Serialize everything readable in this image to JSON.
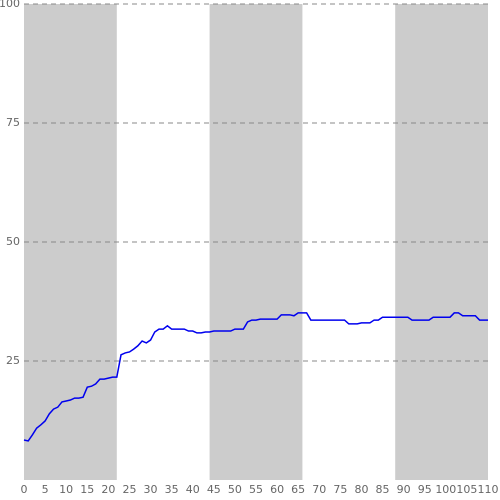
{
  "chart_data": {
    "type": "line",
    "x": [
      0,
      1,
      2,
      3,
      4,
      5,
      6,
      7,
      8,
      9,
      10,
      11,
      12,
      13,
      14,
      15,
      16,
      17,
      18,
      19,
      20,
      21,
      22,
      23,
      24,
      25,
      26,
      27,
      28,
      29,
      30,
      31,
      32,
      33,
      34,
      35,
      36,
      37,
      38,
      39,
      40,
      41,
      42,
      43,
      44,
      45,
      46,
      47,
      48,
      49,
      50,
      51,
      52,
      53,
      54,
      55,
      56,
      57,
      58,
      59,
      60,
      61,
      62,
      63,
      64,
      65,
      66,
      67,
      68,
      69,
      70,
      71,
      72,
      73,
      74,
      75,
      76,
      77,
      78,
      79,
      80,
      81,
      82,
      83,
      84,
      85,
      86,
      87,
      88,
      89,
      90,
      91,
      92,
      93,
      94,
      95,
      96,
      97,
      98,
      99,
      100,
      101,
      102,
      103,
      104,
      105,
      106,
      107,
      108,
      109,
      110
    ],
    "series": [
      {
        "color": "#0000ee",
        "values": [
          8.4,
          8.2,
          9.5,
          10.9,
          11.6,
          12.4,
          13.9,
          14.9,
          15.3,
          16.4,
          16.6,
          16.8,
          17.2,
          17.2,
          17.4,
          19.5,
          19.7,
          20.2,
          21.2,
          21.2,
          21.4,
          21.6,
          21.6,
          26.3,
          26.7,
          26.9,
          27.5,
          28.2,
          29.2,
          28.8,
          29.4,
          31.1,
          31.7,
          31.7,
          32.4,
          31.7,
          31.7,
          31.7,
          31.7,
          31.3,
          31.3,
          30.9,
          30.9,
          31.1,
          31.1,
          31.3,
          31.3,
          31.3,
          31.3,
          31.3,
          31.7,
          31.7,
          31.7,
          33.2,
          33.6,
          33.6,
          33.8,
          33.8,
          33.8,
          33.8,
          33.8,
          34.7,
          34.7,
          34.7,
          34.5,
          35.1,
          35.1,
          35.1,
          33.6,
          33.6,
          33.6,
          33.6,
          33.6,
          33.6,
          33.6,
          33.6,
          33.6,
          32.8,
          32.8,
          32.8,
          33.0,
          33.0,
          33.0,
          33.6,
          33.6,
          34.2,
          34.2,
          34.2,
          34.2,
          34.2,
          34.2,
          34.2,
          33.6,
          33.6,
          33.6,
          33.6,
          33.6,
          34.2,
          34.2,
          34.2,
          34.2,
          34.2,
          35.1,
          35.1,
          34.5,
          34.5,
          34.5,
          34.5,
          33.6,
          33.6,
          33.6
        ]
      }
    ],
    "bands": [
      [
        0,
        22
      ],
      [
        44,
        66
      ],
      [
        88,
        110
      ]
    ],
    "band_color": "#cccccc",
    "xlim": [
      0,
      110
    ],
    "xticks": [
      0,
      5,
      10,
      15,
      20,
      25,
      30,
      35,
      40,
      45,
      50,
      55,
      60,
      65,
      70,
      75,
      80,
      85,
      90,
      95,
      100,
      105,
      110
    ],
    "ylim": [
      0,
      100
    ],
    "yticks": [
      25,
      50,
      75,
      100
    ],
    "grid": true
  }
}
